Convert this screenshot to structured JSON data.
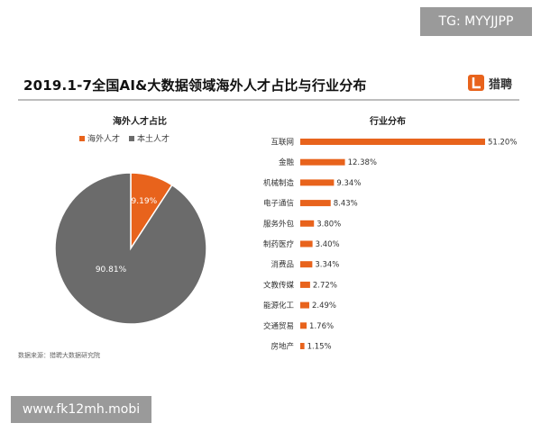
{
  "watermark_top": "TG: MYYJJPP",
  "watermark_bottom": "www.fk12mh.mobi",
  "title": "2019.1-7全国AI&大数据领域海外人才占比与行业分布",
  "brand": {
    "name": "猎聘",
    "color": "#e8631c",
    "icon": "liepin-logo-icon"
  },
  "source": "数据来源：猎聘大数据研究院",
  "colors": {
    "accent": "#e8631c",
    "grey": "#6b6b6b"
  },
  "chart_data": [
    {
      "type": "pie",
      "title": "海外人才占比",
      "legend_position": "top",
      "slices": [
        {
          "name": "海外人才",
          "value": 9.19,
          "label": "9.19%",
          "color": "#e8631c"
        },
        {
          "name": "本土人才",
          "value": 90.81,
          "label": "90.81%",
          "color": "#6b6b6b"
        }
      ]
    },
    {
      "type": "bar",
      "orientation": "horizontal",
      "title": "行业分布",
      "color": "#e8631c",
      "xlim": [
        0,
        51.2
      ],
      "categories": [
        "互联网",
        "金融",
        "机械制造",
        "电子通信",
        "服务外包",
        "制药医疗",
        "消费品",
        "文教传媒",
        "能源化工",
        "交通贸易",
        "房地产"
      ],
      "values": [
        51.2,
        12.38,
        9.34,
        8.43,
        3.8,
        3.4,
        3.34,
        2.72,
        2.49,
        1.76,
        1.15
      ],
      "labels": [
        "51.20%",
        "12.38%",
        "9.34%",
        "8.43%",
        "3.80%",
        "3.40%",
        "3.34%",
        "2.72%",
        "2.49%",
        "1.76%",
        "1.15%"
      ]
    }
  ]
}
